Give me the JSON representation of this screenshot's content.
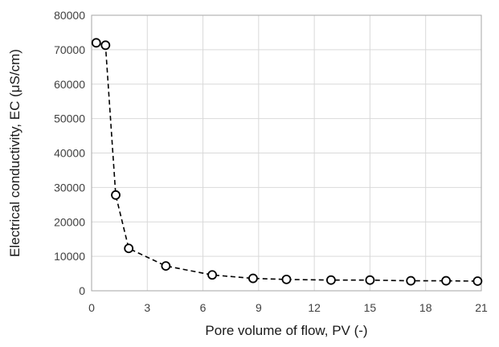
{
  "chart_data": {
    "type": "scatter",
    "xlabel": "Pore volume of flow, PV (-)",
    "ylabel": "Electrical conductivity,  EC (μS/cm)",
    "xlim": [
      0,
      21
    ],
    "ylim": [
      0,
      80000
    ],
    "xticks": [
      0,
      3,
      6,
      9,
      12,
      15,
      18,
      21
    ],
    "yticks": [
      0,
      10000,
      20000,
      30000,
      40000,
      50000,
      60000,
      70000,
      80000
    ],
    "grid": true,
    "legend": "none",
    "series": [
      {
        "marker": "open-circle",
        "line": "dashed",
        "color": "#000000",
        "points": [
          {
            "x": 0.25,
            "y": 72000
          },
          {
            "x": 0.75,
            "y": 71300
          },
          {
            "x": 1.3,
            "y": 27800
          },
          {
            "x": 2.0,
            "y": 12300
          },
          {
            "x": 4.0,
            "y": 7200
          },
          {
            "x": 6.5,
            "y": 4600
          },
          {
            "x": 8.7,
            "y": 3600
          },
          {
            "x": 10.5,
            "y": 3300
          },
          {
            "x": 12.9,
            "y": 3100
          },
          {
            "x": 15.0,
            "y": 3100
          },
          {
            "x": 17.2,
            "y": 2900
          },
          {
            "x": 19.1,
            "y": 2900
          },
          {
            "x": 20.8,
            "y": 2800
          }
        ]
      }
    ]
  }
}
